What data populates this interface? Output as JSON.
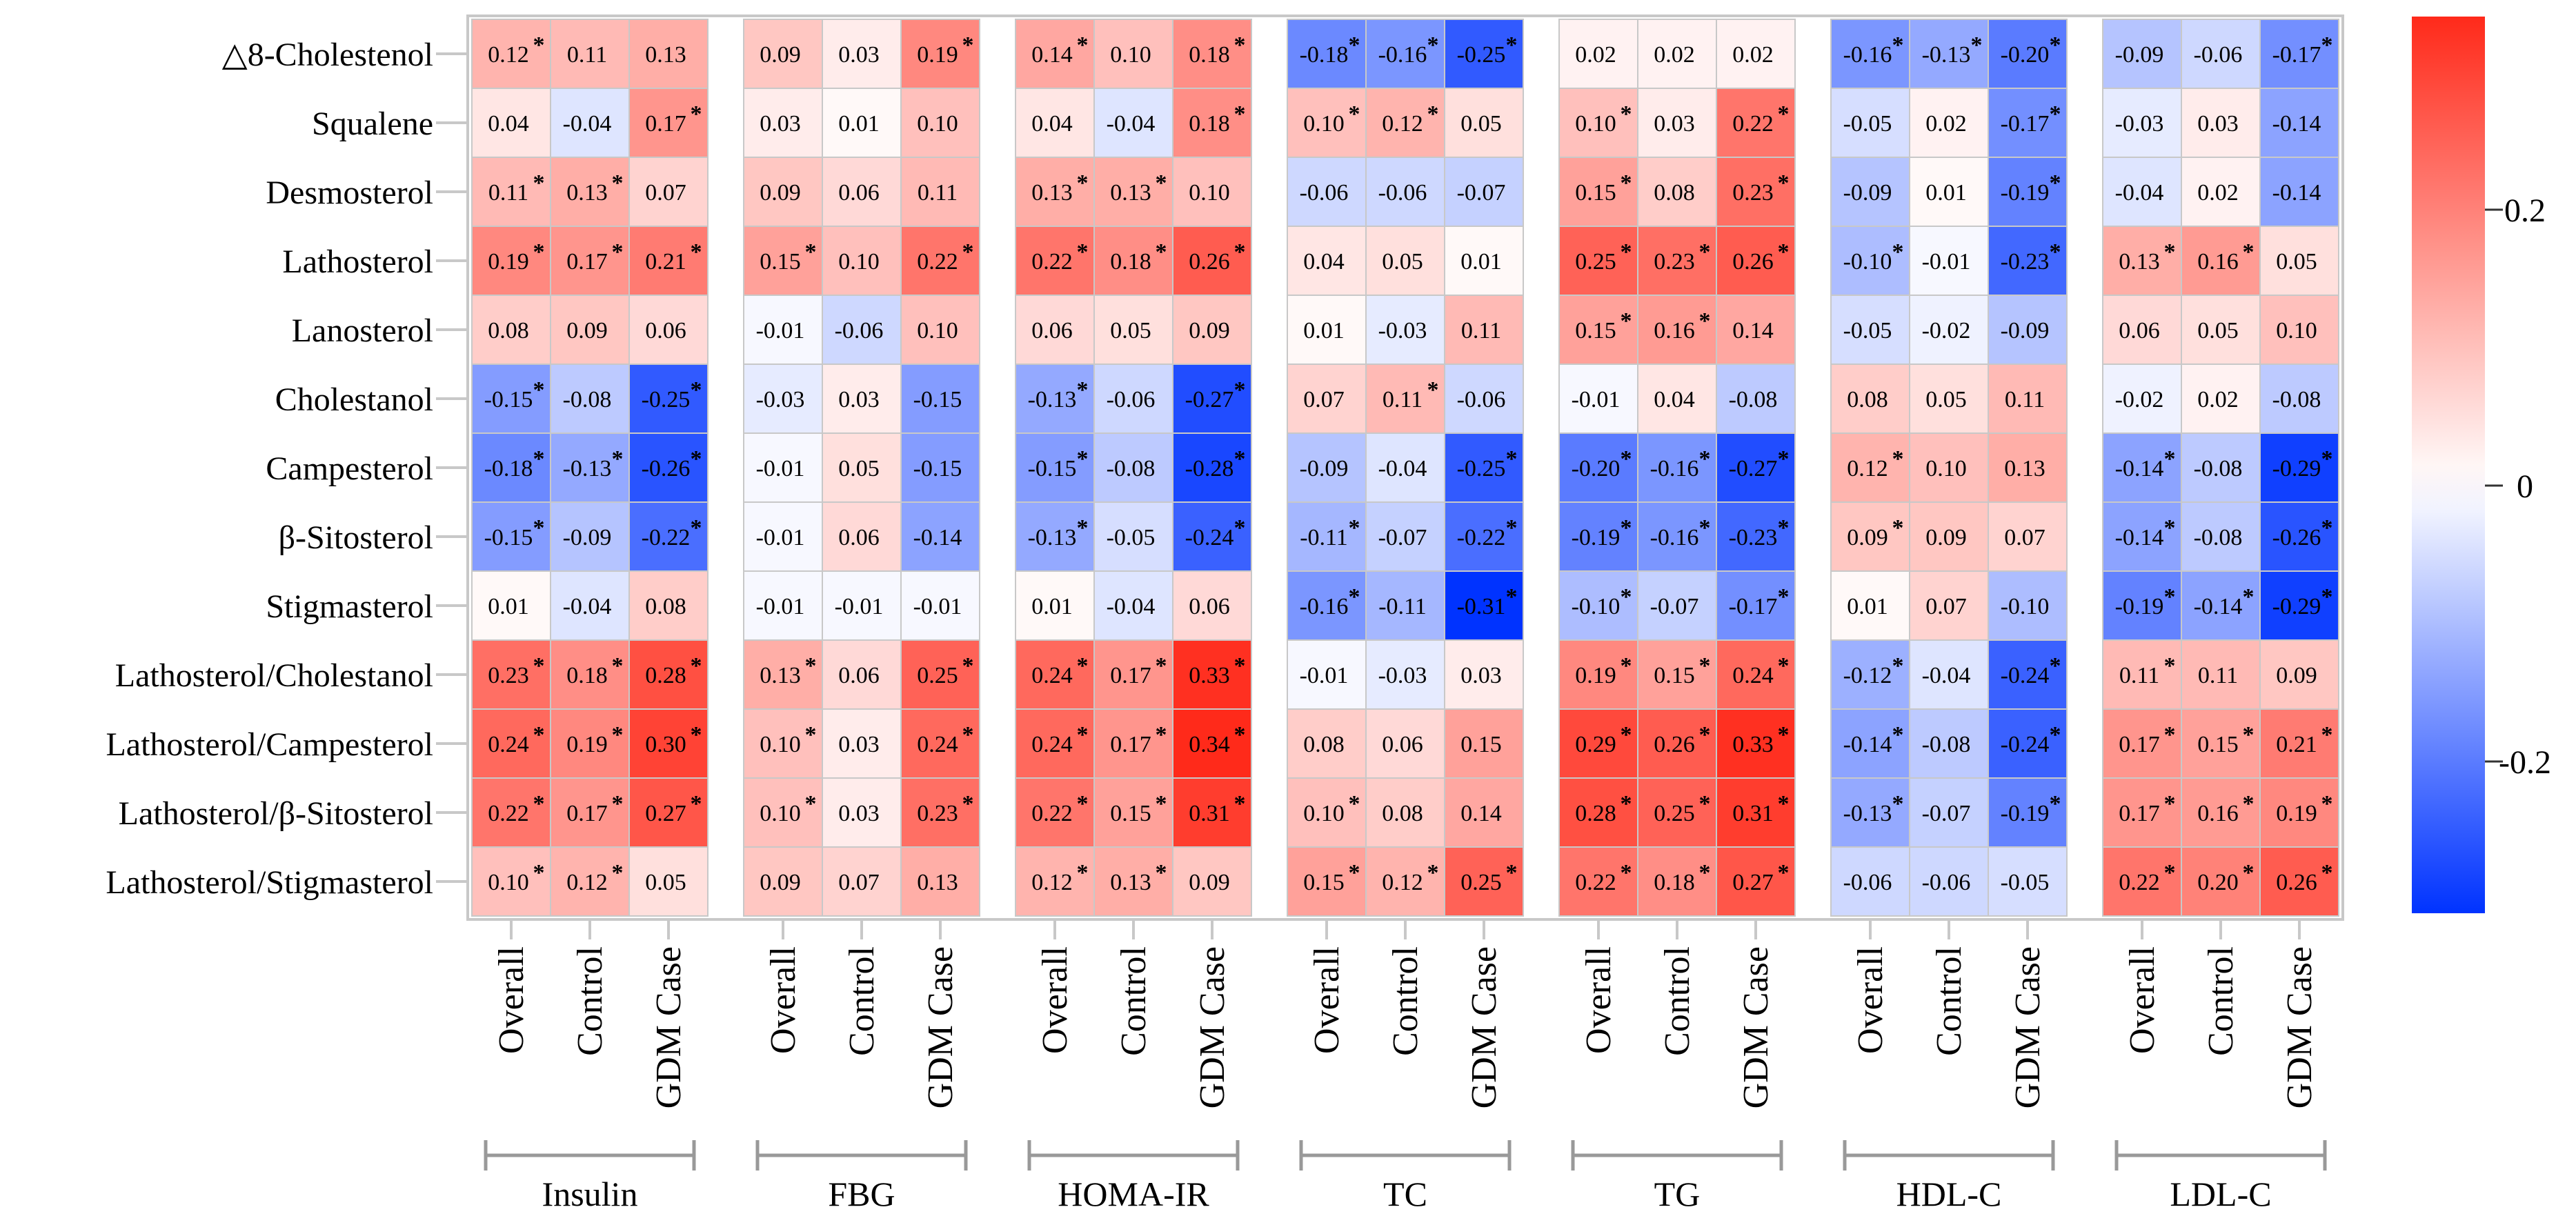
{
  "chart_data": {
    "type": "heatmap",
    "title": "",
    "rows": [
      "△8-Cholestenol",
      "Squalene",
      "Desmosterol",
      "Lathosterol",
      "Lanosterol",
      "Cholestanol",
      "Campesterol",
      "β-Sitosterol",
      "Stigmasterol",
      "Lathosterol/Cholestanol",
      "Lathosterol/Campesterol",
      "Lathosterol/β-Sitosterol",
      "Lathosterol/Stigmasterol"
    ],
    "groups": [
      "Insulin",
      "FBG",
      "HOMA-IR",
      "TC",
      "TG",
      "HDL-C",
      "LDL-C"
    ],
    "subgroups": [
      "Overall",
      "Control",
      "GDM Case"
    ],
    "values": [
      [
        0.12,
        0.11,
        0.13,
        0.09,
        0.03,
        0.19,
        0.14,
        0.1,
        0.18,
        -0.18,
        -0.16,
        -0.25,
        0.02,
        0.02,
        0.02,
        -0.16,
        -0.13,
        -0.2,
        -0.09,
        -0.06,
        -0.17
      ],
      [
        0.04,
        -0.04,
        0.17,
        0.03,
        0.01,
        0.1,
        0.04,
        -0.04,
        0.18,
        0.1,
        0.12,
        0.05,
        0.1,
        0.03,
        0.22,
        -0.05,
        0.02,
        -0.17,
        -0.03,
        0.03,
        -0.14
      ],
      [
        0.11,
        0.13,
        0.07,
        0.09,
        0.06,
        0.11,
        0.13,
        0.13,
        0.1,
        -0.06,
        -0.06,
        -0.07,
        0.15,
        0.08,
        0.23,
        -0.09,
        0.01,
        -0.19,
        -0.04,
        0.02,
        -0.14
      ],
      [
        0.19,
        0.17,
        0.21,
        0.15,
        0.1,
        0.22,
        0.22,
        0.18,
        0.26,
        0.04,
        0.05,
        0.01,
        0.25,
        0.23,
        0.26,
        -0.1,
        -0.01,
        -0.23,
        0.13,
        0.16,
        0.05
      ],
      [
        0.08,
        0.09,
        0.06,
        -0.01,
        -0.06,
        0.1,
        0.06,
        0.05,
        0.09,
        0.01,
        -0.03,
        0.11,
        0.15,
        0.16,
        0.14,
        -0.05,
        -0.02,
        -0.09,
        0.06,
        0.05,
        0.1
      ],
      [
        -0.15,
        -0.08,
        -0.25,
        -0.03,
        0.03,
        -0.15,
        -0.13,
        -0.06,
        -0.27,
        0.07,
        0.11,
        -0.06,
        -0.01,
        0.04,
        -0.08,
        0.08,
        0.05,
        0.11,
        -0.02,
        0.02,
        -0.08
      ],
      [
        -0.18,
        -0.13,
        -0.26,
        -0.01,
        0.05,
        -0.15,
        -0.15,
        -0.08,
        -0.28,
        -0.09,
        -0.04,
        -0.25,
        -0.2,
        -0.16,
        -0.27,
        0.12,
        0.1,
        0.13,
        -0.14,
        -0.08,
        -0.29
      ],
      [
        -0.15,
        -0.09,
        -0.22,
        -0.01,
        0.06,
        -0.14,
        -0.13,
        -0.05,
        -0.24,
        -0.11,
        -0.07,
        -0.22,
        -0.19,
        -0.16,
        -0.23,
        0.09,
        0.09,
        0.07,
        -0.14,
        -0.08,
        -0.26
      ],
      [
        0.01,
        -0.04,
        0.08,
        -0.01,
        -0.01,
        -0.01,
        0.01,
        -0.04,
        0.06,
        -0.16,
        -0.11,
        -0.31,
        -0.1,
        -0.07,
        -0.17,
        0.01,
        0.07,
        -0.1,
        -0.19,
        -0.14,
        -0.29
      ],
      [
        0.23,
        0.18,
        0.28,
        0.13,
        0.06,
        0.25,
        0.24,
        0.17,
        0.33,
        -0.01,
        -0.03,
        0.03,
        0.19,
        0.15,
        0.24,
        -0.12,
        -0.04,
        -0.24,
        0.11,
        0.11,
        0.09
      ],
      [
        0.24,
        0.19,
        0.3,
        0.1,
        0.03,
        0.24,
        0.24,
        0.17,
        0.34,
        0.08,
        0.06,
        0.15,
        0.29,
        0.26,
        0.33,
        -0.14,
        -0.08,
        -0.24,
        0.17,
        0.15,
        0.21
      ],
      [
        0.22,
        0.17,
        0.27,
        0.1,
        0.03,
        0.23,
        0.22,
        0.15,
        0.31,
        0.1,
        0.08,
        0.14,
        0.28,
        0.25,
        0.31,
        -0.13,
        -0.07,
        -0.19,
        0.17,
        0.16,
        0.19
      ],
      [
        0.1,
        0.12,
        0.05,
        0.09,
        0.07,
        0.13,
        0.12,
        0.13,
        0.09,
        0.15,
        0.12,
        0.25,
        0.22,
        0.18,
        0.27,
        -0.06,
        -0.06,
        -0.05,
        0.22,
        0.2,
        0.26
      ]
    ],
    "significant": [
      [
        1,
        0,
        0,
        0,
        0,
        1,
        1,
        0,
        1,
        1,
        1,
        1,
        0,
        0,
        0,
        1,
        1,
        1,
        0,
        0,
        1
      ],
      [
        0,
        0,
        1,
        0,
        0,
        0,
        0,
        0,
        1,
        1,
        1,
        0,
        1,
        0,
        1,
        0,
        0,
        1,
        0,
        0,
        0
      ],
      [
        1,
        1,
        0,
        0,
        0,
        0,
        1,
        1,
        0,
        0,
        0,
        0,
        1,
        0,
        1,
        0,
        0,
        1,
        0,
        0,
        0
      ],
      [
        1,
        1,
        1,
        1,
        0,
        1,
        1,
        1,
        1,
        0,
        0,
        0,
        1,
        1,
        1,
        1,
        0,
        1,
        1,
        1,
        0
      ],
      [
        0,
        0,
        0,
        0,
        0,
        0,
        0,
        0,
        0,
        0,
        0,
        0,
        1,
        1,
        0,
        0,
        0,
        0,
        0,
        0,
        0
      ],
      [
        1,
        0,
        1,
        0,
        0,
        0,
        1,
        0,
        1,
        0,
        1,
        0,
        0,
        0,
        0,
        0,
        0,
        0,
        0,
        0,
        0
      ],
      [
        1,
        1,
        1,
        0,
        0,
        0,
        1,
        0,
        1,
        0,
        0,
        1,
        1,
        1,
        1,
        1,
        0,
        0,
        1,
        0,
        1
      ],
      [
        1,
        0,
        1,
        0,
        0,
        0,
        1,
        0,
        1,
        1,
        0,
        1,
        1,
        1,
        1,
        1,
        0,
        0,
        1,
        0,
        1
      ],
      [
        0,
        0,
        0,
        0,
        0,
        0,
        0,
        0,
        0,
        1,
        0,
        1,
        1,
        0,
        1,
        0,
        0,
        0,
        1,
        1,
        1
      ],
      [
        1,
        1,
        1,
        1,
        0,
        1,
        1,
        1,
        1,
        0,
        0,
        0,
        1,
        1,
        1,
        1,
        0,
        1,
        1,
        0,
        0
      ],
      [
        1,
        1,
        1,
        1,
        0,
        1,
        1,
        1,
        1,
        0,
        0,
        0,
        1,
        1,
        1,
        1,
        0,
        1,
        1,
        1,
        1
      ],
      [
        1,
        1,
        1,
        1,
        0,
        1,
        1,
        1,
        1,
        1,
        0,
        0,
        1,
        1,
        1,
        1,
        0,
        1,
        1,
        1,
        1
      ],
      [
        1,
        1,
        0,
        0,
        0,
        0,
        1,
        1,
        0,
        1,
        1,
        1,
        1,
        1,
        1,
        0,
        0,
        0,
        1,
        1,
        1
      ]
    ],
    "significance_marker": "*",
    "colorbar": {
      "range": [
        -0.31,
        0.34
      ],
      "ticks": [
        -0.2,
        0,
        0.2
      ],
      "tick_labels": [
        "-0.2",
        "0",
        "0.2"
      ]
    },
    "colors": {
      "low": "#0033ff",
      "mid": "#ffffff",
      "high": "#ff2a1a",
      "grid": "#c8c8c8",
      "frame": "#c8c8c8",
      "text": "#000000"
    }
  }
}
